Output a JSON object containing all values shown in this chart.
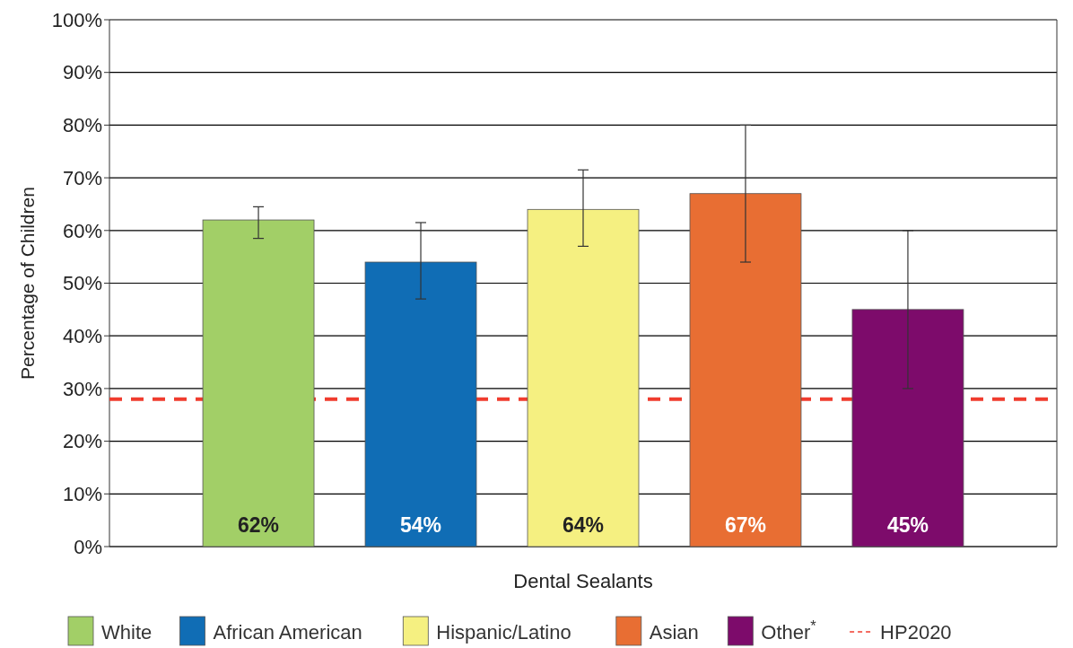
{
  "chart_data": {
    "type": "bar",
    "categories": [
      "Dental Sealants"
    ],
    "ylabel": "Percentage of Children",
    "ylim": [
      0,
      100
    ],
    "yticks": [
      {
        "value": 0,
        "label": "0%"
      },
      {
        "value": 10,
        "label": "10%"
      },
      {
        "value": 20,
        "label": "20%"
      },
      {
        "value": 30,
        "label": "30%"
      },
      {
        "value": 40,
        "label": "40%"
      },
      {
        "value": 50,
        "label": "50%"
      },
      {
        "value": 60,
        "label": "60%"
      },
      {
        "value": 70,
        "label": "70%"
      },
      {
        "value": 80,
        "label": "80%"
      },
      {
        "value": 90,
        "label": "90%"
      },
      {
        "value": 100,
        "label": "100%"
      }
    ],
    "grid": "y",
    "legend": "bottom",
    "series": [
      {
        "name": "White",
        "color": "#a2cf67",
        "values": [
          62
        ],
        "errors": [
          [
            58.5,
            64.5
          ]
        ],
        "value_labels": [
          "62%"
        ]
      },
      {
        "name": "African American",
        "color": "#106db5",
        "values": [
          54
        ],
        "errors": [
          [
            47,
            61.5
          ]
        ],
        "value_labels": [
          "54%"
        ]
      },
      {
        "name": "Hispanic/Latino",
        "color": "#f5f081",
        "values": [
          64
        ],
        "errors": [
          [
            57,
            71.5
          ]
        ],
        "value_labels": [
          "64%"
        ]
      },
      {
        "name": "Asian",
        "color": "#e86e33",
        "values": [
          67
        ],
        "errors": [
          [
            54,
            80
          ]
        ],
        "value_labels": [
          "67%"
        ]
      },
      {
        "name": "Other$^{*}$",
        "color": "#7d0b6b",
        "values": [
          45
        ],
        "errors": [
          [
            30,
            60
          ]
        ],
        "value_labels": [
          "45%"
        ]
      }
    ],
    "ref_lines": [
      {
        "axis": "y",
        "value": 28,
        "label": "HP2020",
        "color": "#f03c2e",
        "line_style": "dashed"
      }
    ]
  }
}
